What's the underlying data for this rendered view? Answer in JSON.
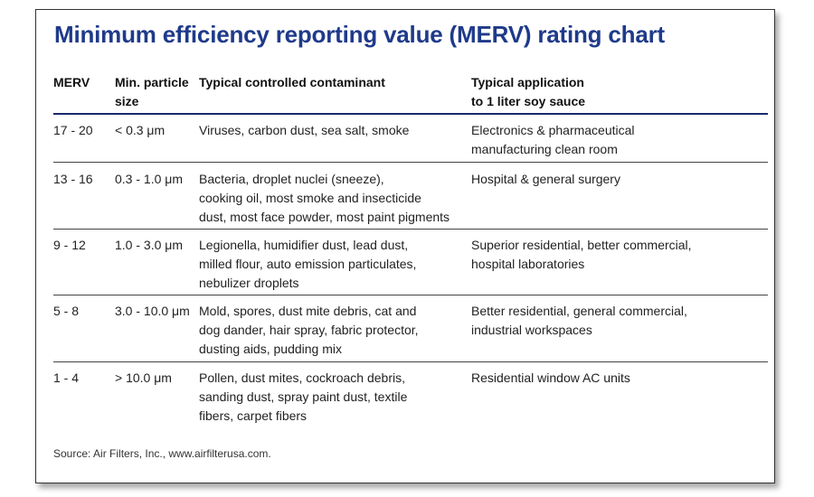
{
  "title": "Minimum efficiency reporting value (MERV) rating chart",
  "headers": {
    "merv": "MERV",
    "size_l1": "Min. particle",
    "size_l2": "size",
    "contaminant": "Typical controlled contaminant",
    "app_l1": "Typical application",
    "app_l2": "to 1 liter soy sauce"
  },
  "rows": [
    {
      "merv": "17 - 20",
      "size": "< 0.3 μm",
      "contaminant": [
        "Viruses, carbon dust, sea salt, smoke"
      ],
      "application": [
        "Electronics & pharmaceutical",
        "manufacturing clean room"
      ]
    },
    {
      "merv": "13 - 16",
      "size": "0.3 - 1.0 μm",
      "contaminant": [
        "Bacteria, droplet nuclei (sneeze),",
        "cooking oil, most smoke and insecticide",
        "dust, most face powder, most paint pigments"
      ],
      "application": [
        "Hospital & general surgery"
      ]
    },
    {
      "merv": "9 - 12",
      "size": "1.0 - 3.0 μm",
      "contaminant": [
        "Legionella, humidifier dust, lead dust,",
        "milled flour, auto emission particulates,",
        "nebulizer droplets"
      ],
      "application": [
        "Superior residential, better commercial,",
        "hospital laboratories"
      ]
    },
    {
      "merv": "5 - 8",
      "size": "3.0 - 10.0 μm",
      "contaminant": [
        "Mold, spores, dust mite debris, cat and",
        "dog dander, hair spray, fabric protector,",
        "dusting aids, pudding mix"
      ],
      "application": [
        "Better residential, general commercial,",
        "industrial workspaces"
      ]
    },
    {
      "merv": "1 - 4",
      "size": "> 10.0 μm",
      "contaminant": [
        "Pollen, dust mites, cockroach debris,",
        "sanding dust, spray paint dust, textile",
        "fibers, carpet fibers"
      ],
      "application": [
        "Residential window AC units"
      ]
    }
  ],
  "source": "Source: Air Filters, Inc., www.airfilterusa.com."
}
